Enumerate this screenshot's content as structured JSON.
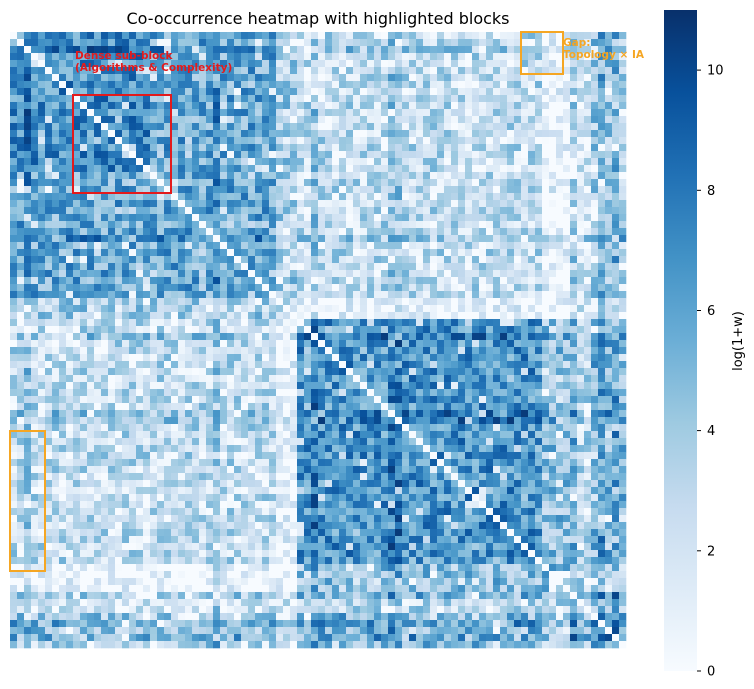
{
  "chart_data": {
    "type": "heatmap",
    "title": "Co-occurrence heatmap with highlighted blocks",
    "matrix_size": 88,
    "colormap": "Blues",
    "colorbar": {
      "label": "log(1+w)",
      "min": 0,
      "max": 11,
      "ticks": [
        0,
        2,
        4,
        6,
        8,
        10
      ]
    },
    "axis_ticks_shown": false,
    "grid": false,
    "diagonal_value": 0,
    "clusters": [
      {
        "rows": [
          0,
          40
        ],
        "intensity": "medium-high"
      },
      {
        "rows": [
          41,
          79
        ],
        "intensity": "high"
      },
      {
        "rows": [
          80,
          87
        ],
        "intensity": "high"
      }
    ],
    "highlighted_blocks": [
      {
        "label_lines": [
          "Dense sub-block",
          "(Algorithms & Complexity)"
        ],
        "color": "#e31a1c",
        "rows": [
          9,
          22
        ],
        "cols": [
          9,
          22
        ]
      },
      {
        "label_lines": [
          "Gap:",
          "Topology × IA"
        ],
        "color": "#f5a623",
        "rows": [
          0,
          5
        ],
        "cols": [
          73,
          78
        ]
      },
      {
        "label_lines": [],
        "color": "#f5a623",
        "rows": [
          57,
          76
        ],
        "cols": [
          0,
          4
        ]
      }
    ]
  }
}
